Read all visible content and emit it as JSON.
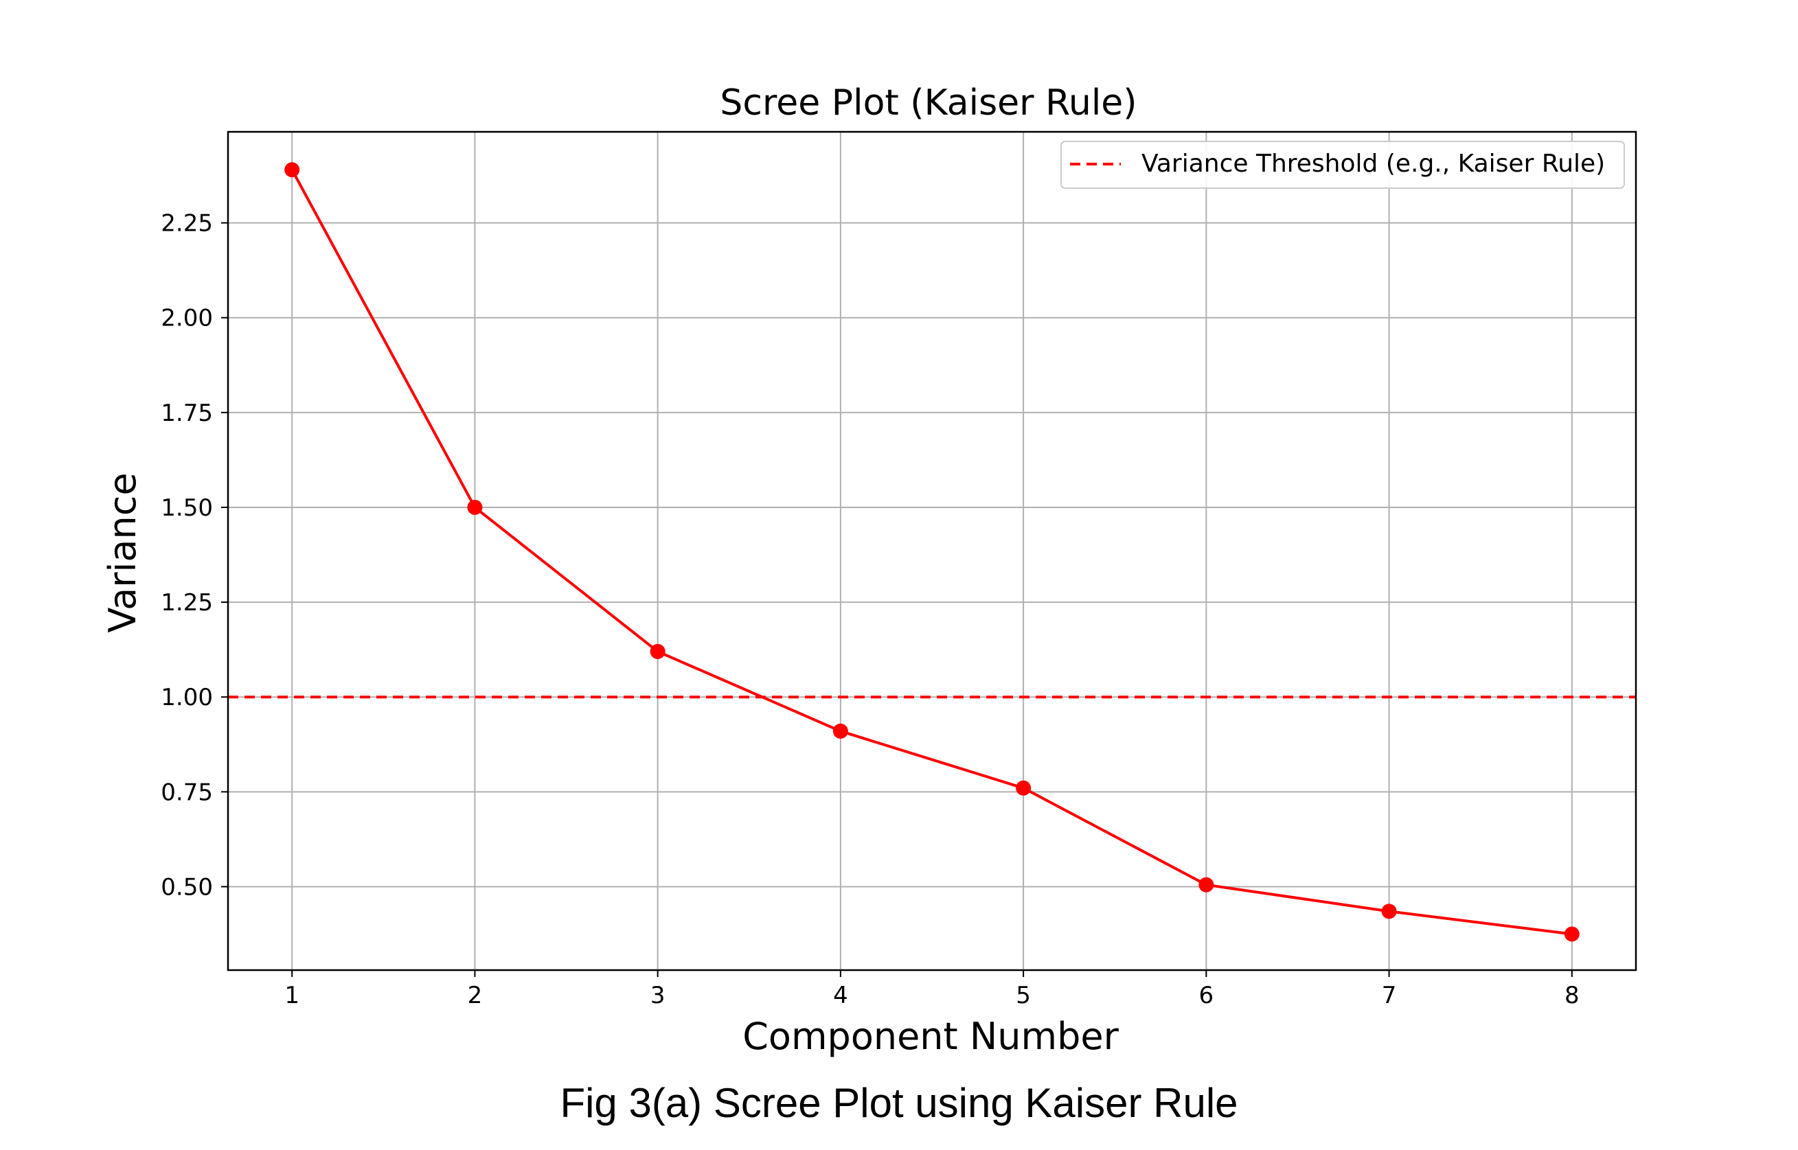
{
  "chart_data": {
    "type": "line",
    "title": "Scree Plot (Kaiser Rule)",
    "xlabel": "Component Number",
    "ylabel": "Variance",
    "x": [
      1,
      2,
      3,
      4,
      5,
      6,
      7,
      8
    ],
    "series": [
      {
        "values": [
          2.39,
          1.5,
          1.12,
          0.91,
          0.76,
          0.505,
          0.435,
          0.375
        ],
        "color": "#ff0000",
        "marker": "circle"
      }
    ],
    "threshold": {
      "name": "Variance Threshold (e.g., Kaiser Rule)",
      "value": 1.0,
      "style": "dashed",
      "color": "#ff0000"
    },
    "xlim": [
      0.65,
      8.35
    ],
    "ylim": [
      0.28,
      2.49
    ],
    "xticks": [
      1,
      2,
      3,
      4,
      5,
      6,
      7,
      8
    ],
    "yticks": [
      0.5,
      0.75,
      1.0,
      1.25,
      1.5,
      1.75,
      2.0,
      2.25
    ],
    "ytick_labels": [
      "0.50",
      "0.75",
      "1.00",
      "1.25",
      "1.50",
      "1.75",
      "2.00",
      "2.25"
    ],
    "grid": true,
    "legend_position": "top-right"
  },
  "caption": {
    "label": "Fig 3(a)",
    "text": " Scree Plot using Kaiser Rule"
  }
}
